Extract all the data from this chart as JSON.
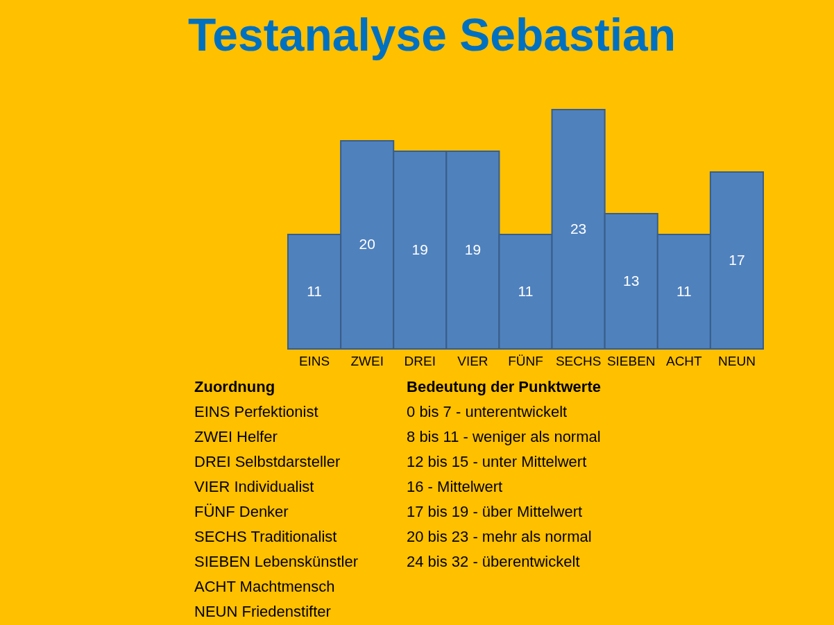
{
  "chart_data": {
    "type": "bar",
    "title": "Testanalyse Sebastian",
    "categories": [
      "EINS",
      "ZWEI",
      "DREI",
      "VIER",
      "FÜNF",
      "SECHS",
      "SIEBEN",
      "ACHT",
      "NEUN"
    ],
    "values": [
      11,
      20,
      19,
      19,
      11,
      23,
      13,
      11,
      17
    ],
    "color": "#4f81bd",
    "data_labels": true,
    "annotations": [
      "Zuordnung",
      "EINS Perfektionist",
      "ZWEI Helfer",
      "DREI Selbstdarsteller",
      "VIER Individualist",
      "FÜNF Denker",
      "SECHS Traditionalist",
      "SIEBEN Lebenskünstler",
      "ACHT Machtmensch",
      "NEUN Friedenstifter",
      "Bedeutung der Punktwerte",
      "0 bis 7 - unterentwickelt",
      "8 bis 11 - weniger als normal",
      "12 bis 15 - unter Mittelwert",
      "16 - Mittelwert",
      "17 bis 19 - über Mittelwert",
      "20 bis 23 - mehr als normal",
      "24 bis 32 - überentwickelt"
    ]
  }
}
